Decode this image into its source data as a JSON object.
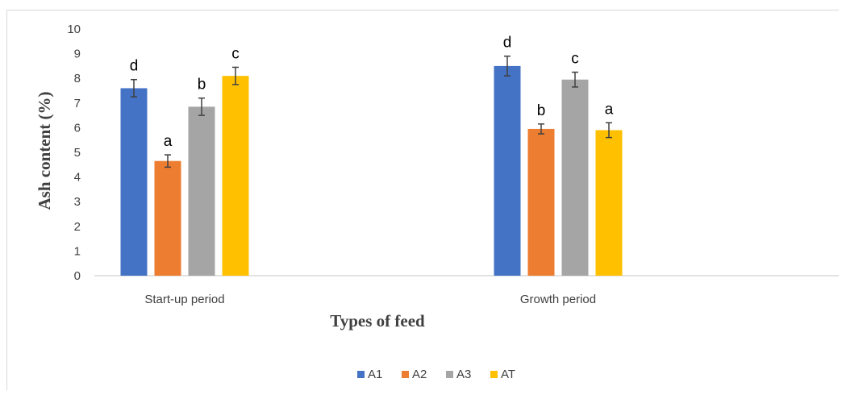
{
  "chart_data": {
    "type": "bar",
    "xlabel": "Types of feed",
    "ylabel": "Ash content (%)",
    "ylim": [
      0,
      10
    ],
    "yticks": [
      0,
      1,
      2,
      3,
      4,
      5,
      6,
      7,
      8,
      9,
      10
    ],
    "grid": false,
    "legend_position": "bottom",
    "categories": [
      "Start-up period",
      "Growth period"
    ],
    "series": [
      {
        "name": "A1",
        "color": "#4472c4",
        "values": [
          7.6,
          8.5
        ],
        "errors": [
          0.35,
          0.4
        ],
        "letters": [
          "d",
          "d"
        ]
      },
      {
        "name": "A2",
        "color": "#ed7d31",
        "values": [
          4.65,
          5.95
        ],
        "errors": [
          0.25,
          0.2
        ],
        "letters": [
          "a",
          "b"
        ]
      },
      {
        "name": "A3",
        "color": "#a5a5a5",
        "values": [
          6.85,
          7.95
        ],
        "errors": [
          0.35,
          0.3
        ],
        "letters": [
          "b",
          "c"
        ]
      },
      {
        "name": "AT",
        "color": "#ffc000",
        "values": [
          8.1,
          5.9
        ],
        "errors": [
          0.35,
          0.3
        ],
        "letters": [
          "c",
          "a"
        ]
      }
    ]
  }
}
